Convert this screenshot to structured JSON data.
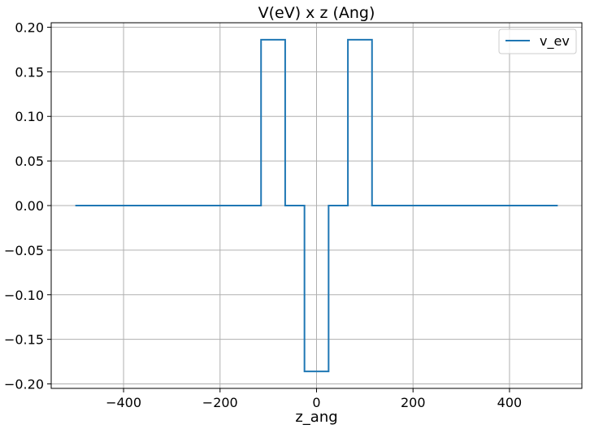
{
  "chart_data": {
    "type": "line",
    "title": "V(eV) x z (Ang)",
    "xlabel": "z_ang",
    "ylabel": "",
    "xlim": [
      -550,
      550
    ],
    "ylim": [
      -0.205,
      0.205
    ],
    "xticks": [
      -400,
      -200,
      0,
      200,
      400
    ],
    "xtick_labels": [
      "−400",
      "−200",
      "0",
      "200",
      "400"
    ],
    "yticks": [
      -0.2,
      -0.15,
      -0.1,
      -0.05,
      0.0,
      0.05,
      0.1,
      0.15,
      0.2
    ],
    "ytick_labels": [
      "−0.20",
      "−0.15",
      "−0.10",
      "−0.05",
      "0.00",
      "0.05",
      "0.10",
      "0.15",
      "0.20"
    ],
    "grid": true,
    "legend_position": "top-right",
    "series": [
      {
        "name": "v_ev",
        "color": "#1f77b4",
        "x": [
          -500,
          -115,
          -115,
          -65,
          -65,
          -25,
          -25,
          25,
          25,
          65,
          65,
          115,
          115,
          500
        ],
        "y": [
          0,
          0,
          0.186,
          0.186,
          0,
          0,
          -0.186,
          -0.186,
          0,
          0,
          0.186,
          0.186,
          0,
          0
        ]
      }
    ]
  }
}
